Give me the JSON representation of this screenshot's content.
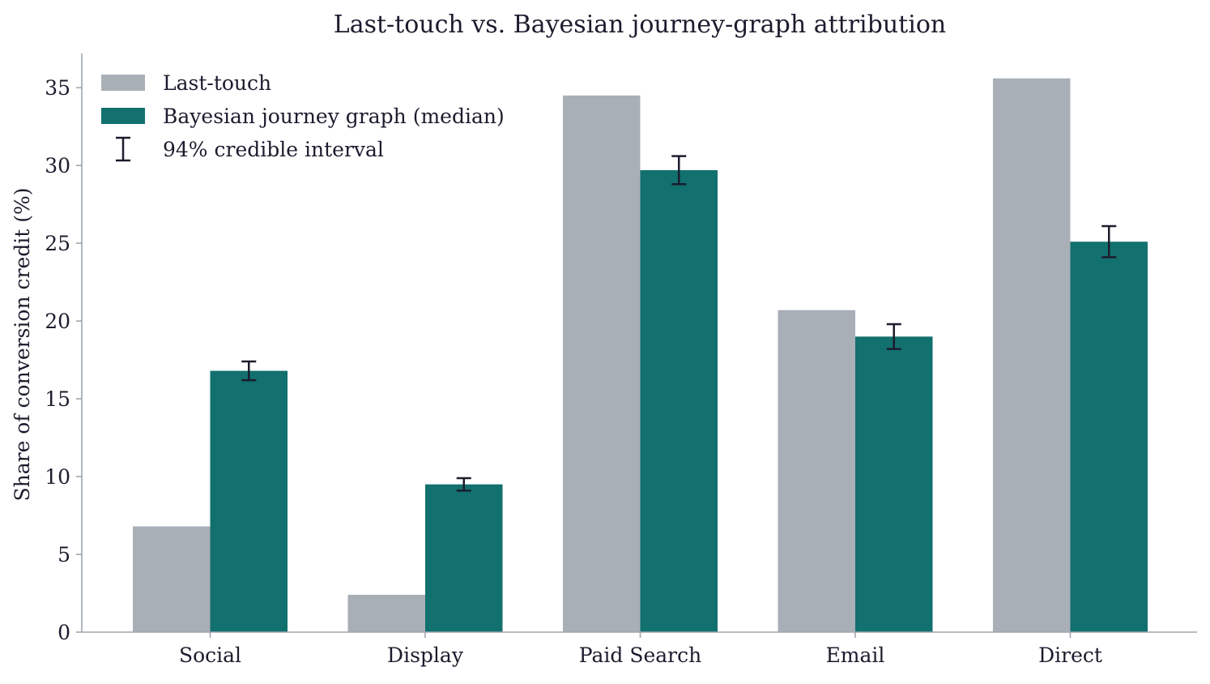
{
  "chart_data": {
    "type": "bar",
    "title": "Last-touch vs. Bayesian journey-graph attribution",
    "xlabel": "",
    "ylabel": "Share of conversion credit (%)",
    "categories": [
      "Social",
      "Display",
      "Paid Search",
      "Email",
      "Direct"
    ],
    "ylim": [
      0,
      37.2
    ],
    "yticks": [
      0,
      5,
      10,
      15,
      20,
      25,
      30,
      35
    ],
    "grid": false,
    "legend_position": "top-left",
    "series": [
      {
        "name": "Last-touch",
        "color": "#a9afb7",
        "values": [
          6.8,
          2.4,
          34.5,
          20.7,
          35.6
        ]
      },
      {
        "name": "Bayesian journey graph (median)",
        "color": "#12706e",
        "values": [
          16.8,
          9.5,
          29.7,
          19.0,
          25.1
        ],
        "interval": {
          "name": "94% credible interval",
          "lower": [
            16.2,
            9.1,
            28.8,
            18.2,
            24.1
          ],
          "upper": [
            17.4,
            9.9,
            30.6,
            19.8,
            26.1
          ]
        }
      }
    ],
    "colors": {
      "axis": "#a0a6ad",
      "text": "#1c1c2e",
      "errorbar": "#1c1c2e"
    }
  }
}
